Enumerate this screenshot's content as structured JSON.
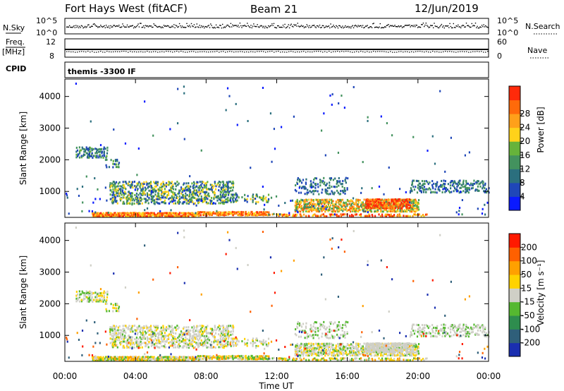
{
  "header": {
    "station": "Fort Hays West (fitACF)",
    "beam": "Beam 21",
    "date": "12/Jun/2019"
  },
  "panels": {
    "nsky": {
      "label": "N.Sky",
      "ticks": [
        "10^5",
        "10^0"
      ],
      "right_ticks": [
        "10^5",
        "10^0"
      ],
      "right_label": "N.Search"
    },
    "freq": {
      "label_line1": "Freq.",
      "label_line2": "[MHz]",
      "ticks": [
        "12",
        "8"
      ],
      "right_ticks": [
        "60",
        "0"
      ],
      "right_label": "Nave"
    },
    "cpid": {
      "label": "CPID",
      "text": "themis -3300 IF"
    }
  },
  "chart_data": [
    {
      "type": "heatmap",
      "name": "power",
      "ylabel": "Slant Range [km]",
      "ylim": [
        180,
        4550
      ],
      "yticks": [
        1000,
        2000,
        3000,
        4000
      ],
      "colorbar": {
        "label": "Power [dB]",
        "ticks": [
          4,
          8,
          12,
          16,
          20,
          24,
          28
        ],
        "colors": [
          "#0a1aff",
          "#1f47b8",
          "#2b6f7e",
          "#43925e",
          "#66b33b",
          "#ffd21a",
          "#ffa01a",
          "#ff6a0a",
          "#ff2a0a"
        ]
      }
    },
    {
      "type": "heatmap",
      "name": "velocity",
      "ylabel": "Slant Range [km]",
      "xlabel": "Time UT",
      "ylim": [
        180,
        4550
      ],
      "yticks": [
        1000,
        2000,
        3000,
        4000
      ],
      "colorbar": {
        "label": "Velocity [m s⁻¹]",
        "ticks": [
          200,
          100,
          50,
          15,
          -15,
          -50,
          -100,
          -200
        ],
        "colors": [
          "#1a2fb0",
          "#2f5f7a",
          "#2e8d4e",
          "#55b830",
          "#cfcfc6",
          "#ffd200",
          "#ffa000",
          "#ff6000",
          "#ff1a00"
        ]
      }
    }
  ],
  "time_axis": {
    "xlim_hours": [
      0,
      24
    ],
    "ticks": [
      "00:00",
      "04:00",
      "08:00",
      "12:00",
      "16:00",
      "20:00",
      "00:00"
    ]
  }
}
